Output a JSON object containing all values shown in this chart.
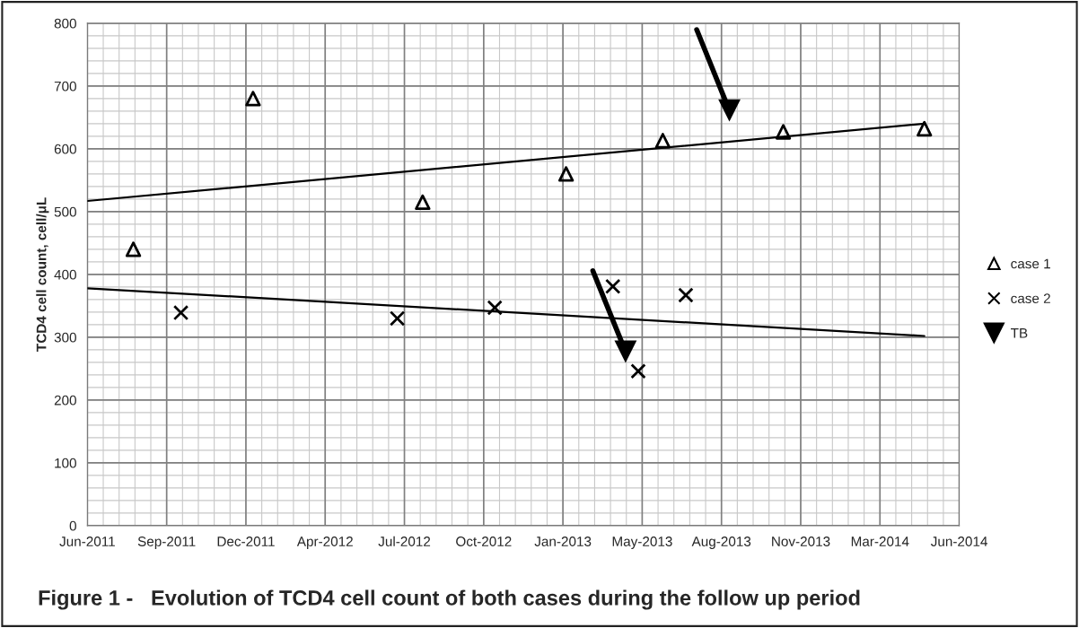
{
  "chart_data": {
    "type": "scatter",
    "title": "Figure 1 -   Evolution of TCD4 cell count of both cases during the follow up period",
    "ylabel": "TCD4 cell count, cell/μL",
    "series": [
      {
        "name": "case 1",
        "color": "#000000",
        "marker": "triangle",
        "x": [
          "2011-08-07",
          "2012-01-05",
          "2012-08-06",
          "2013-02-03",
          "2013-06-05",
          "2013-11-04",
          "2014-05-01"
        ],
        "values": [
          440,
          680,
          515,
          560,
          613,
          627,
          632
        ]
      },
      {
        "name": "case 2",
        "color": "#000000",
        "marker": "cross",
        "x": [
          "2011-10-06",
          "2012-07-05",
          "2012-11-05",
          "2013-04-03",
          "2013-05-05",
          "2013-07-04"
        ],
        "values": [
          339,
          330,
          347,
          381,
          246,
          367
        ]
      },
      {
        "type": "line",
        "color": "#000000",
        "x": [
          "2011-06-10",
          "2014-05-01"
        ],
        "values": [
          517,
          640
        ]
      },
      {
        "type": "line",
        "color": "#000000",
        "x": [
          "2011-06-10",
          "2014-05-01"
        ],
        "values": [
          378,
          302
        ]
      },
      {
        "name": "TB",
        "color": "#000000",
        "marker": "triangle",
        "x": [
          "2013-04-19",
          "2013-08-28"
        ],
        "values": [
          277,
          661
        ]
      }
    ],
    "xlim": [
      "2011-06-10",
      "2014-06-14"
    ],
    "xticks": [
      {
        "value": "2011-06-10",
        "label": "Jun-2011"
      },
      {
        "value": "2011-09-18",
        "label": "Sep-2011"
      },
      {
        "value": "2011-12-27",
        "label": "Dec-2011"
      },
      {
        "value": "2012-04-05",
        "label": "Apr-2012"
      },
      {
        "value": "2012-07-14",
        "label": "Jul-2012"
      },
      {
        "value": "2012-10-22",
        "label": "Oct-2012"
      },
      {
        "value": "2013-01-30",
        "label": "Jan-2013"
      },
      {
        "value": "2013-05-10",
        "label": "May-2013"
      },
      {
        "value": "2013-08-18",
        "label": "Aug-2013"
      },
      {
        "value": "2013-11-26",
        "label": "Nov-2013"
      },
      {
        "value": "2014-03-06",
        "label": "Mar-2014"
      },
      {
        "value": "2014-06-14",
        "label": "Jun-2014"
      }
    ],
    "ylim": [
      0,
      800
    ],
    "yticks": [
      0,
      100,
      200,
      300,
      400,
      500,
      600,
      700,
      800
    ],
    "grid": true,
    "legend": "right"
  }
}
